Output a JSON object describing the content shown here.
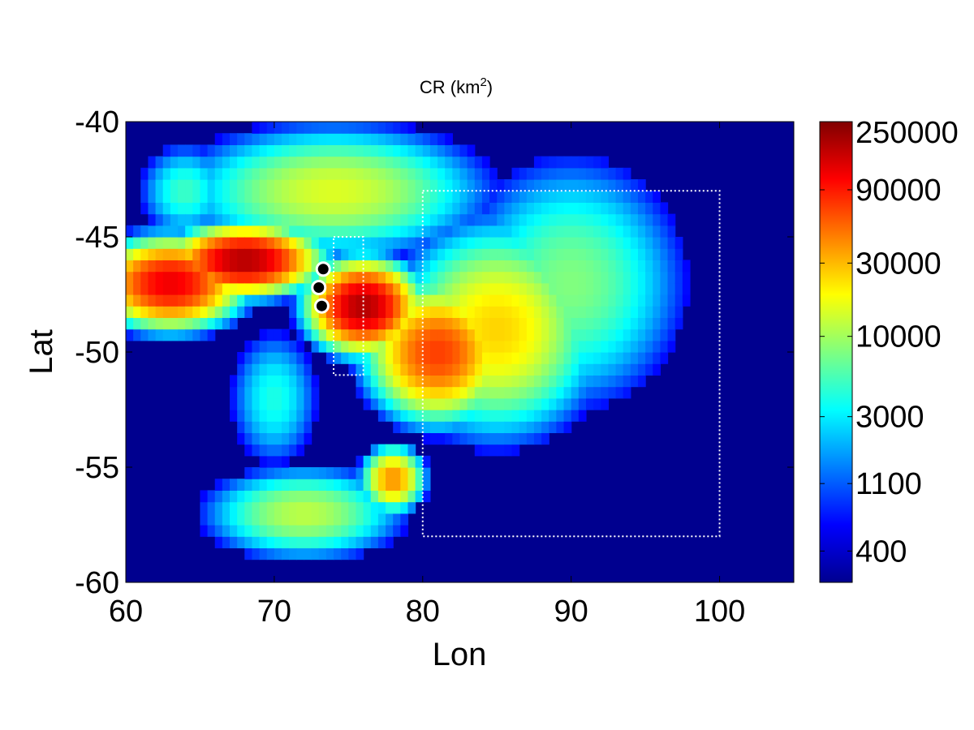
{
  "chart_data": {
    "type": "heatmap",
    "title_base": "CR (km",
    "title_sup": "2",
    "title_close": ")",
    "xlabel": "Lon",
    "ylabel": "Lat",
    "xlim": [
      60,
      105
    ],
    "ylim": [
      -60,
      -40
    ],
    "xticks": [
      60,
      70,
      80,
      90,
      100
    ],
    "yticks": [
      -40,
      -45,
      -50,
      -55,
      -60
    ],
    "xtick_labels": [
      "60",
      "70",
      "80",
      "90",
      "100"
    ],
    "ytick_labels": [
      "-40",
      "-45",
      "-50",
      "-55",
      "-60"
    ],
    "colorbar": {
      "scale": "log",
      "range": [
        250,
        250000
      ],
      "tick_values": [
        250000,
        90000,
        30000,
        10000,
        3000,
        1100,
        400
      ],
      "tick_labels": [
        "250000",
        "90000",
        "30000",
        "10000",
        "3000",
        "1100",
        "400"
      ],
      "colormap": "jet"
    },
    "background_color": "#00008f",
    "hotspots": [
      {
        "lon": 63,
        "lat": -47,
        "value": 120000,
        "spread_lon": 4,
        "spread_lat": 1.6
      },
      {
        "lon": 68,
        "lat": -46,
        "value": 180000,
        "spread_lon": 4,
        "spread_lat": 1.2
      },
      {
        "lon": 76,
        "lat": -48,
        "value": 180000,
        "spread_lon": 3,
        "spread_lat": 1.6
      },
      {
        "lon": 81,
        "lat": -50,
        "value": 70000,
        "spread_lon": 4,
        "spread_lat": 2.5
      },
      {
        "lon": 85,
        "lat": -49,
        "value": 25000,
        "spread_lon": 6,
        "spread_lat": 4
      },
      {
        "lon": 74,
        "lat": -43,
        "value": 15000,
        "spread_lon": 9,
        "spread_lat": 2.5
      },
      {
        "lon": 90,
        "lat": -47,
        "value": 8000,
        "spread_lon": 7,
        "spread_lat": 5
      },
      {
        "lon": 70,
        "lat": -52,
        "value": 4000,
        "spread_lon": 3,
        "spread_lat": 3
      },
      {
        "lon": 72,
        "lat": -57,
        "value": 12000,
        "spread_lon": 6,
        "spread_lat": 1.8
      },
      {
        "lon": 78,
        "lat": -55.5,
        "value": 40000,
        "spread_lon": 1.8,
        "spread_lat": 1.2
      },
      {
        "lon": 64,
        "lat": -43,
        "value": 5000,
        "spread_lon": 3,
        "spread_lat": 2
      }
    ],
    "markers": [
      {
        "lon": 73.3,
        "lat": -46.4
      },
      {
        "lon": 73.0,
        "lat": -47.2
      },
      {
        "lon": 73.2,
        "lat": -48.0
      }
    ],
    "boxes": [
      {
        "lon": [
          74,
          76
        ],
        "lat": [
          -51,
          -45
        ]
      },
      {
        "lon": [
          80,
          100
        ],
        "lat": [
          -58,
          -43
        ]
      }
    ]
  }
}
